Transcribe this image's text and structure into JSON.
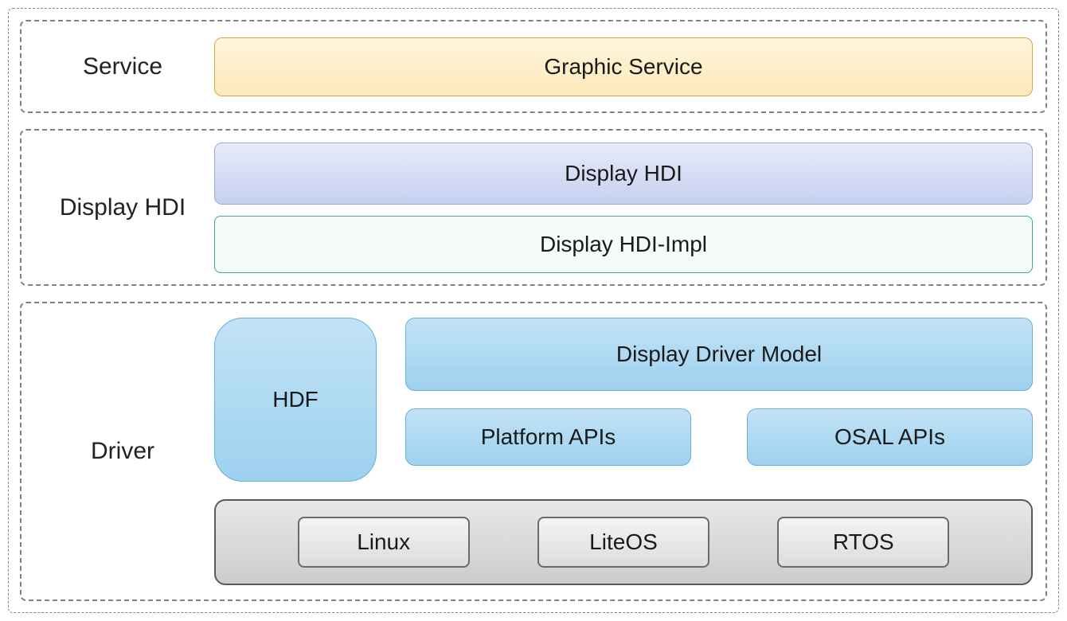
{
  "diagram": {
    "type": "layered-architecture",
    "background_color": "#ffffff",
    "outer_border_color": "#888888",
    "layer_border_color": "#808080",
    "label_fontsize": 30,
    "box_fontsize": 28,
    "text_color": "#1a1a1a"
  },
  "layers": {
    "service": {
      "label": "Service",
      "boxes": {
        "graphic_service": {
          "label": "Graphic Service",
          "border_color": "#d4a93f",
          "bg_top": "#fef5dc",
          "bg_bottom": "#fde9ba",
          "border_radius": 10
        }
      }
    },
    "hdi": {
      "label": "Display HDI",
      "boxes": {
        "display_hdi": {
          "label": "Display HDI",
          "border_color": "#9ba8d8",
          "bg_top": "#e8ecf8",
          "bg_bottom": "#c5cff0",
          "border_radius": 10
        },
        "display_hdi_impl": {
          "label": "Display HDI-Impl",
          "border_color": "#3fa890",
          "bg": "#f5fbf8",
          "border_radius": 8
        }
      }
    },
    "driver": {
      "label": "Driver",
      "boxes": {
        "hdf": {
          "label": "HDF",
          "border_color": "#6aaed6",
          "bg_top": "#c2e3f6",
          "bg_bottom": "#9dd1ef",
          "border_radius": 36
        },
        "ddm": {
          "label": "Display Driver Model",
          "border_color": "#6aaed6",
          "bg_top": "#c2e3f6",
          "bg_bottom": "#9dd1ef",
          "border_radius": 12
        },
        "platform_apis": {
          "label": "Platform APIs",
          "border_color": "#6aaed6",
          "bg_top": "#c2e3f6",
          "bg_bottom": "#9dd1ef",
          "border_radius": 12
        },
        "osal_apis": {
          "label": "OSAL APIs",
          "border_color": "#6aaed6",
          "bg_top": "#c2e3f6",
          "bg_bottom": "#9dd1ef",
          "border_radius": 12
        },
        "os_group": {
          "border_color": "#5a5a5a",
          "bg_top": "#e8e8e8",
          "bg_bottom": "#cccccc",
          "border_radius": 14,
          "items": {
            "linux": {
              "label": "Linux"
            },
            "liteos": {
              "label": "LiteOS"
            },
            "rtos": {
              "label": "RTOS"
            }
          },
          "item_style": {
            "border_color": "#6a6a6a",
            "bg_top": "#f4f4f4",
            "bg_bottom": "#dcdcdc",
            "border_radius": 8
          }
        }
      }
    }
  }
}
